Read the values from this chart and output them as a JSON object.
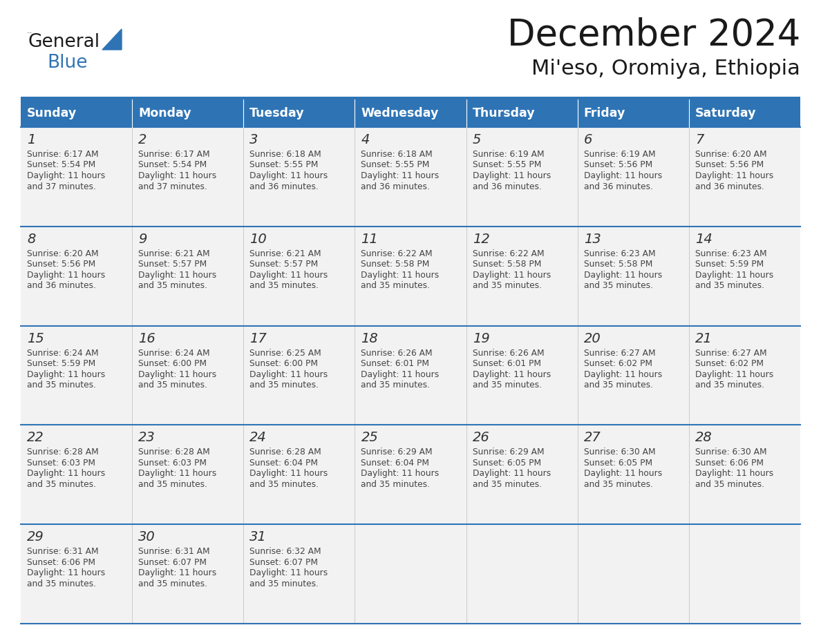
{
  "title": "December 2024",
  "subtitle": "Mi'eso, Oromiya, Ethiopia",
  "days_of_week": [
    "Sunday",
    "Monday",
    "Tuesday",
    "Wednesday",
    "Thursday",
    "Friday",
    "Saturday"
  ],
  "header_bg": "#2E74B5",
  "header_text": "#FFFFFF",
  "cell_bg": "#F2F2F2",
  "cell_border_color": "#2E74B5",
  "separator_color": "#2E74B5",
  "text_color": "#444444",
  "day_number_color": "#333333",
  "title_color": "#1a1a1a",
  "logo_color_general": "#1a1a1a",
  "logo_color_blue": "#2E74B5",
  "calendar_data": [
    [
      {
        "day": 1,
        "sunrise": "6:17 AM",
        "sunset": "5:54 PM",
        "daylight": "11 hours and 37 minutes"
      },
      {
        "day": 2,
        "sunrise": "6:17 AM",
        "sunset": "5:54 PM",
        "daylight": "11 hours and 37 minutes"
      },
      {
        "day": 3,
        "sunrise": "6:18 AM",
        "sunset": "5:55 PM",
        "daylight": "11 hours and 36 minutes"
      },
      {
        "day": 4,
        "sunrise": "6:18 AM",
        "sunset": "5:55 PM",
        "daylight": "11 hours and 36 minutes"
      },
      {
        "day": 5,
        "sunrise": "6:19 AM",
        "sunset": "5:55 PM",
        "daylight": "11 hours and 36 minutes"
      },
      {
        "day": 6,
        "sunrise": "6:19 AM",
        "sunset": "5:56 PM",
        "daylight": "11 hours and 36 minutes"
      },
      {
        "day": 7,
        "sunrise": "6:20 AM",
        "sunset": "5:56 PM",
        "daylight": "11 hours and 36 minutes"
      }
    ],
    [
      {
        "day": 8,
        "sunrise": "6:20 AM",
        "sunset": "5:56 PM",
        "daylight": "11 hours and 36 minutes"
      },
      {
        "day": 9,
        "sunrise": "6:21 AM",
        "sunset": "5:57 PM",
        "daylight": "11 hours and 35 minutes"
      },
      {
        "day": 10,
        "sunrise": "6:21 AM",
        "sunset": "5:57 PM",
        "daylight": "11 hours and 35 minutes"
      },
      {
        "day": 11,
        "sunrise": "6:22 AM",
        "sunset": "5:58 PM",
        "daylight": "11 hours and 35 minutes"
      },
      {
        "day": 12,
        "sunrise": "6:22 AM",
        "sunset": "5:58 PM",
        "daylight": "11 hours and 35 minutes"
      },
      {
        "day": 13,
        "sunrise": "6:23 AM",
        "sunset": "5:58 PM",
        "daylight": "11 hours and 35 minutes"
      },
      {
        "day": 14,
        "sunrise": "6:23 AM",
        "sunset": "5:59 PM",
        "daylight": "11 hours and 35 minutes"
      }
    ],
    [
      {
        "day": 15,
        "sunrise": "6:24 AM",
        "sunset": "5:59 PM",
        "daylight": "11 hours and 35 minutes"
      },
      {
        "day": 16,
        "sunrise": "6:24 AM",
        "sunset": "6:00 PM",
        "daylight": "11 hours and 35 minutes"
      },
      {
        "day": 17,
        "sunrise": "6:25 AM",
        "sunset": "6:00 PM",
        "daylight": "11 hours and 35 minutes"
      },
      {
        "day": 18,
        "sunrise": "6:26 AM",
        "sunset": "6:01 PM",
        "daylight": "11 hours and 35 minutes"
      },
      {
        "day": 19,
        "sunrise": "6:26 AM",
        "sunset": "6:01 PM",
        "daylight": "11 hours and 35 minutes"
      },
      {
        "day": 20,
        "sunrise": "6:27 AM",
        "sunset": "6:02 PM",
        "daylight": "11 hours and 35 minutes"
      },
      {
        "day": 21,
        "sunrise": "6:27 AM",
        "sunset": "6:02 PM",
        "daylight": "11 hours and 35 minutes"
      }
    ],
    [
      {
        "day": 22,
        "sunrise": "6:28 AM",
        "sunset": "6:03 PM",
        "daylight": "11 hours and 35 minutes"
      },
      {
        "day": 23,
        "sunrise": "6:28 AM",
        "sunset": "6:03 PM",
        "daylight": "11 hours and 35 minutes"
      },
      {
        "day": 24,
        "sunrise": "6:28 AM",
        "sunset": "6:04 PM",
        "daylight": "11 hours and 35 minutes"
      },
      {
        "day": 25,
        "sunrise": "6:29 AM",
        "sunset": "6:04 PM",
        "daylight": "11 hours and 35 minutes"
      },
      {
        "day": 26,
        "sunrise": "6:29 AM",
        "sunset": "6:05 PM",
        "daylight": "11 hours and 35 minutes"
      },
      {
        "day": 27,
        "sunrise": "6:30 AM",
        "sunset": "6:05 PM",
        "daylight": "11 hours and 35 minutes"
      },
      {
        "day": 28,
        "sunrise": "6:30 AM",
        "sunset": "6:06 PM",
        "daylight": "11 hours and 35 minutes"
      }
    ],
    [
      {
        "day": 29,
        "sunrise": "6:31 AM",
        "sunset": "6:06 PM",
        "daylight": "11 hours and 35 minutes"
      },
      {
        "day": 30,
        "sunrise": "6:31 AM",
        "sunset": "6:07 PM",
        "daylight": "11 hours and 35 minutes"
      },
      {
        "day": 31,
        "sunrise": "6:32 AM",
        "sunset": "6:07 PM",
        "daylight": "11 hours and 35 minutes"
      },
      null,
      null,
      null,
      null
    ]
  ]
}
